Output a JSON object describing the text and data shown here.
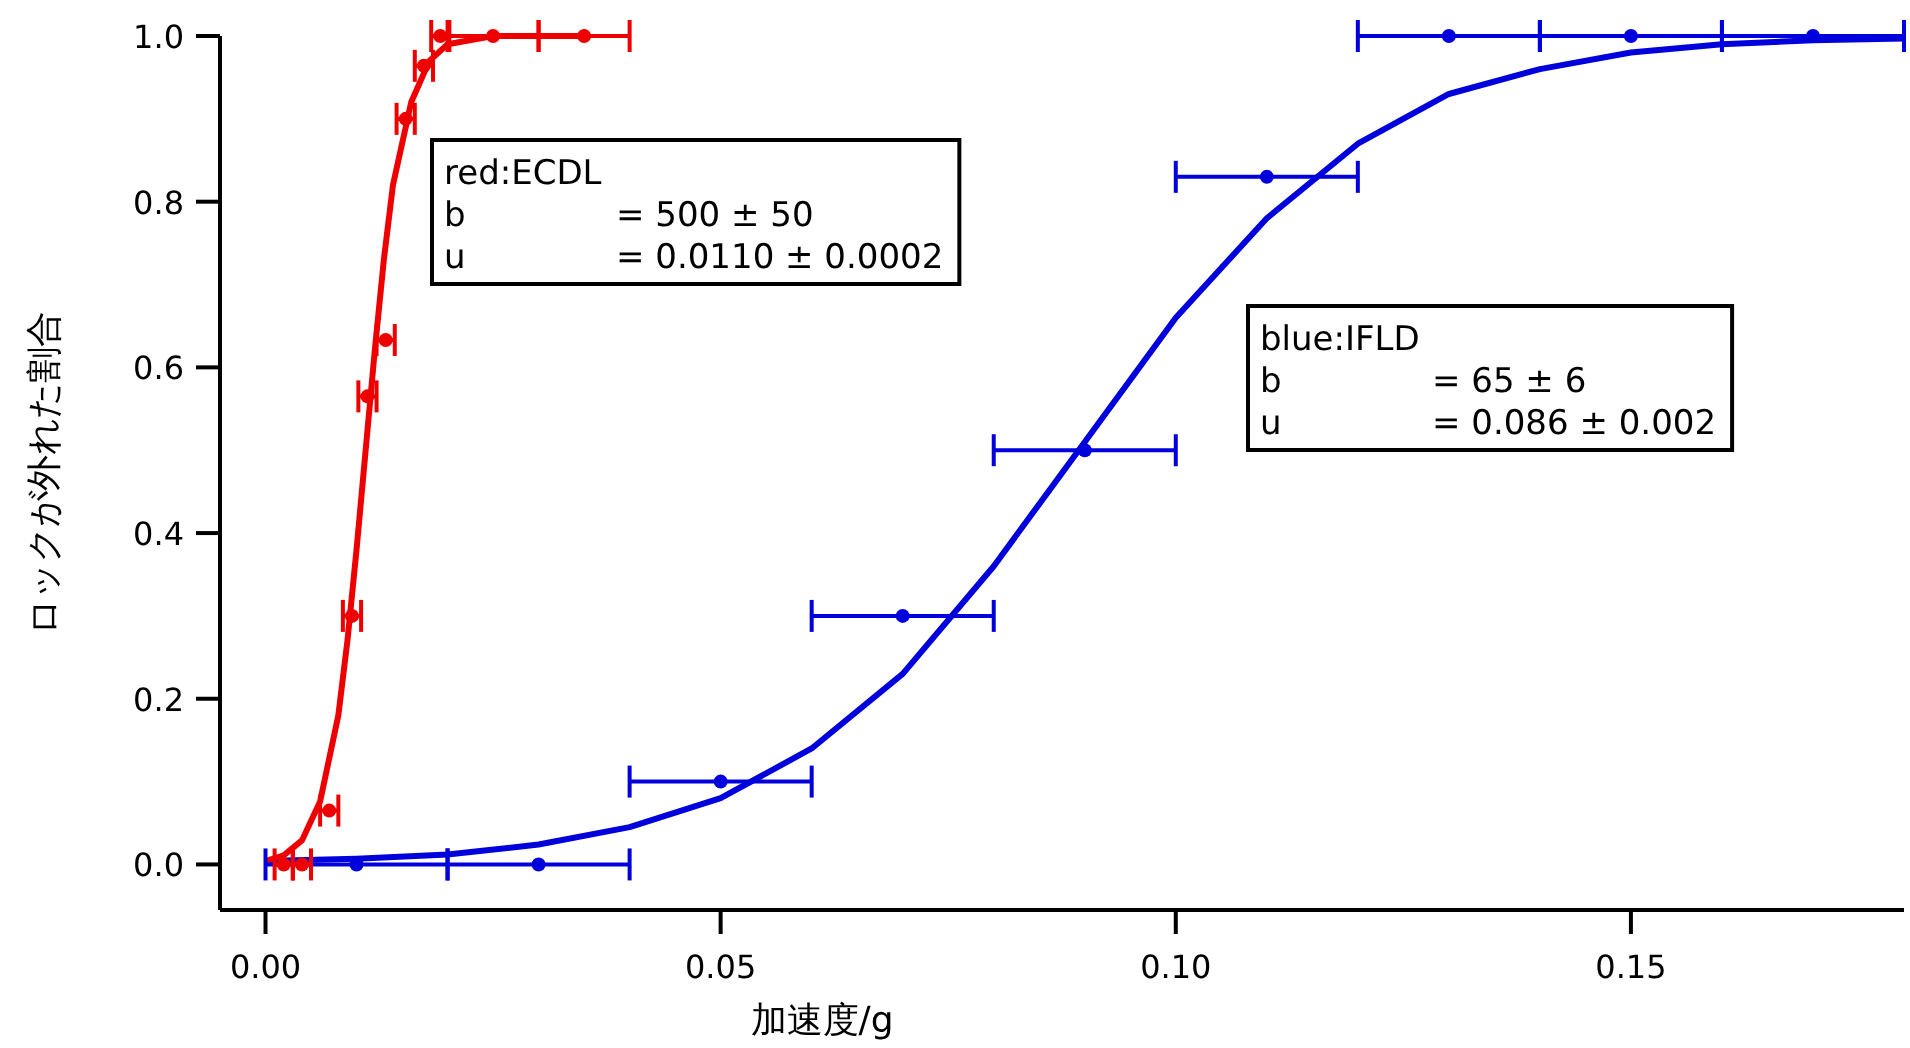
{
  "chart_data": {
    "type": "scatter",
    "xlabel": "加速度/g",
    "ylabel": "ロックが外れた割合",
    "xlim": [
      -0.005,
      0.18
    ],
    "ylim": [
      -0.055,
      1.0
    ],
    "xticks": [
      {
        "value": 0,
        "label": "0.00"
      },
      0.05,
      {
        "value": 0.1,
        "label": "0.10"
      },
      0.15
    ],
    "yticks": [
      {
        "value": 0,
        "label": "0.0"
      },
      0.2,
      0.4,
      0.6,
      0.8,
      {
        "value": 1,
        "label": "1.0"
      }
    ],
    "grid": false,
    "marker": "circle",
    "series": [
      {
        "type": "line",
        "marker": "none",
        "color": "#0000dd",
        "x": [
          0,
          0.01,
          0.02,
          0.03,
          0.04,
          0.05,
          0.06,
          0.07,
          0.08,
          0.09,
          0.1,
          0.11,
          0.12,
          0.13,
          0.14,
          0.15,
          0.16,
          0.17,
          0.18
        ],
        "values": [
          0.004,
          0.007,
          0.012,
          0.024,
          0.045,
          0.08,
          0.14,
          0.23,
          0.36,
          0.51,
          0.66,
          0.78,
          0.87,
          0.93,
          0.96,
          0.98,
          0.99,
          0.995,
          0.997
        ]
      },
      {
        "type": "line",
        "marker": "none",
        "color": "#ee0000",
        "x": [
          0,
          0.002,
          0.004,
          0.006,
          0.008,
          0.009,
          0.01,
          0.011,
          0.012,
          0.013,
          0.014,
          0.016,
          0.018,
          0.02,
          0.025,
          0.035
        ],
        "values": [
          0.004,
          0.011,
          0.029,
          0.076,
          0.18,
          0.27,
          0.38,
          0.5,
          0.62,
          0.73,
          0.82,
          0.92,
          0.97,
          0.99,
          1,
          1
        ]
      },
      {
        "color": "#0000dd",
        "x": [
          0.01,
          0.03,
          0.05,
          0.07,
          0.09,
          0.11,
          0.13,
          0.15,
          0.17
        ],
        "values": [
          0,
          0,
          0.1,
          0.3,
          0.5,
          0.83,
          1,
          1,
          1
        ],
        "xerrors": [
          0.01,
          0.01,
          0.01,
          0.01,
          0.01,
          0.01,
          0.01,
          0.01,
          0.01
        ]
      },
      {
        "color": "#ee0000",
        "x": [
          0.002,
          0.004,
          0.007,
          0.0095,
          0.0112,
          0.0132,
          0.0154,
          0.0174,
          0.0192,
          0.025,
          0.035
        ],
        "values": [
          0,
          0,
          0.065,
          0.3,
          0.565,
          0.633,
          0.9,
          0.964,
          1,
          1,
          1
        ],
        "xerrors": [
          0.001,
          0.001,
          0.001,
          0.001,
          0.001,
          0.001,
          0.001,
          0.001,
          0.001,
          0.005,
          0.005
        ]
      }
    ],
    "annotations": [
      "red:ECDL\nb = 500 ± 50\nu = 0.0110 ± 0.0002",
      "blue:IFLD\nb = 65 ± 6\nu = 0.086 ± 0.002"
    ]
  }
}
